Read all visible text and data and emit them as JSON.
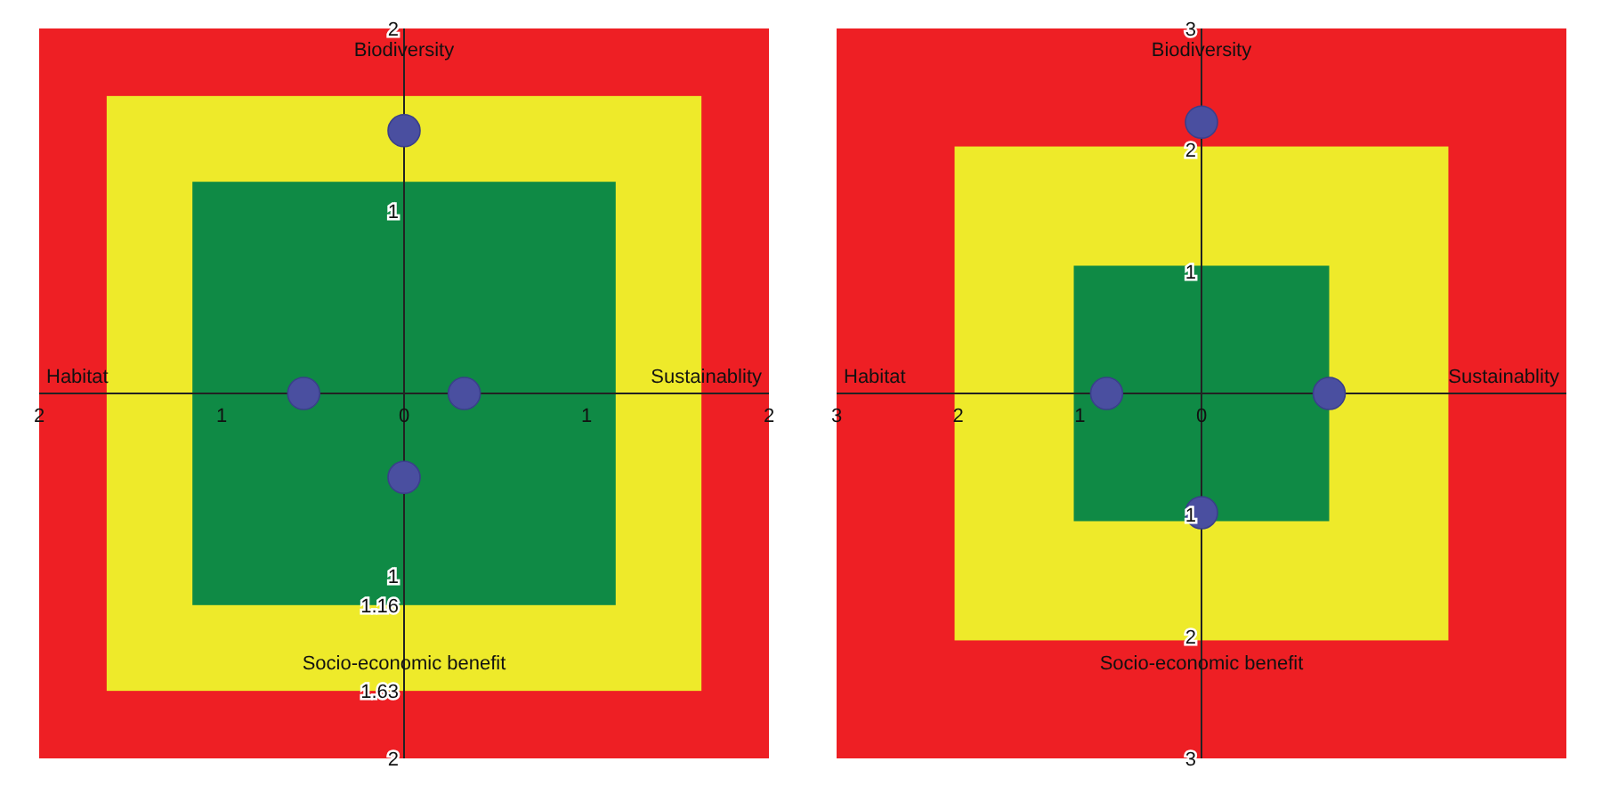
{
  "chart_data": [
    {
      "type": "scatter",
      "x": [
        0,
        -0.55,
        0.33,
        0
      ],
      "values": [
        1.44,
        0,
        0,
        -0.46
      ],
      "color": "#4a4fa0",
      "marker": "circle",
      "xlim": [
        -2,
        2
      ],
      "ylim": [
        -2,
        2
      ],
      "xticks": [
        {
          "value": -2,
          "label": "2"
        },
        {
          "value": -1,
          "label": "1"
        },
        0,
        1,
        2
      ],
      "yticks": [
        2,
        1,
        {
          "value": -1,
          "label": "1"
        },
        {
          "value": -1.16,
          "label": "1.16"
        },
        {
          "value": -1.63,
          "label": "1.63"
        },
        {
          "value": -2,
          "label": "2"
        }
      ],
      "bands": [
        {
          "axis": "x",
          "from": -2,
          "to": 2,
          "color": "#ee1f24"
        },
        {
          "axis": "x",
          "from": -1.63,
          "to": 1.63,
          "color": "#eeea2a"
        },
        {
          "axis": "x",
          "from": -1.16,
          "to": 1.16,
          "color": "#0f8a45"
        }
      ],
      "annotations": [
        "Biodiversity",
        "Habitat",
        "Sustainablity",
        "Socio-economic benefit"
      ],
      "grid": false
    },
    {
      "type": "scatter",
      "x": [
        0,
        -0.78,
        1.05,
        0
      ],
      "values": [
        2.23,
        0,
        0,
        -0.98
      ],
      "color": "#4a4fa0",
      "marker": "circle",
      "xlim": [
        -3,
        3
      ],
      "ylim": [
        -3,
        3
      ],
      "xticks": [
        {
          "value": -3,
          "label": "3"
        },
        {
          "value": -2,
          "label": "2"
        },
        {
          "value": -1,
          "label": "1"
        },
        0
      ],
      "yticks": [
        3,
        2,
        1,
        {
          "value": -1,
          "label": "1"
        },
        {
          "value": -2,
          "label": "2"
        },
        {
          "value": -3,
          "label": "3"
        }
      ],
      "bands": [
        {
          "axis": "x",
          "from": -3,
          "to": 3,
          "color": "#ee1f24"
        },
        {
          "axis": "x",
          "from": -2.03,
          "to": 2.03,
          "color": "#eeea2a"
        },
        {
          "axis": "x",
          "from": -1.05,
          "to": 1.05,
          "color": "#0f8a45"
        }
      ],
      "annotations": [
        "Biodiversity",
        "Habitat",
        "Sustainablity",
        "Socio-economic benefit"
      ],
      "grid": false
    }
  ]
}
